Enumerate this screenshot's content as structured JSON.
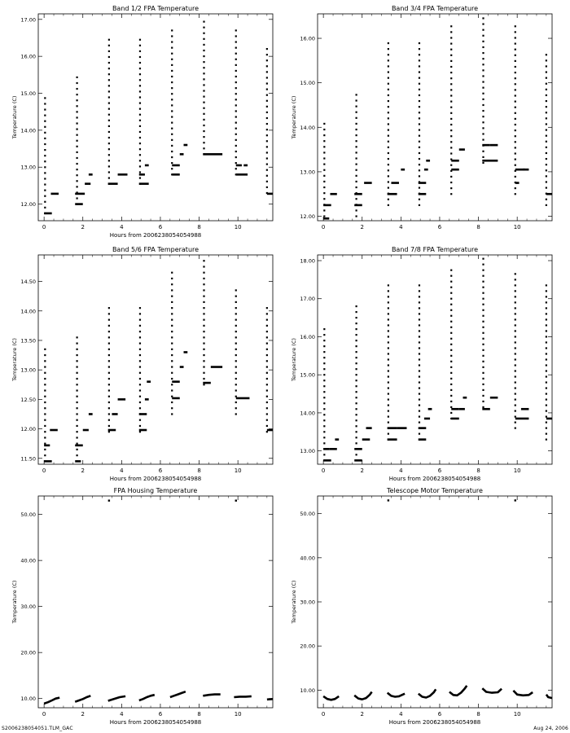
{
  "footer": {
    "file_label": "S2006238054051.TLM_GAC",
    "date_label": "Aug 24, 2006"
  },
  "chart_data": [
    {
      "id": "band12",
      "type": "scatter",
      "title": "Band 1/2 FPA Temperature",
      "xlabel": "Hours from 2006238054054988",
      "ylabel": "Temperature (C)",
      "xlim": [
        -0.3,
        11.8
      ],
      "ylim": [
        11.55,
        17.15
      ],
      "xticks": [
        0,
        2,
        4,
        6,
        8,
        10
      ],
      "yticks": [
        12,
        13,
        14,
        15,
        16,
        17
      ],
      "ytick_labels": [
        "12.00",
        "13.00",
        "14.00",
        "15.00",
        "16.00",
        "17.00"
      ],
      "ystep": 0.156,
      "vertical_runs": [
        [
          0.05,
          11.75,
          14.95
        ],
        [
          1.7,
          12.0,
          15.45
        ],
        [
          3.35,
          12.55,
          16.5
        ],
        [
          4.95,
          12.55,
          16.5
        ],
        [
          6.6,
          12.8,
          16.8
        ],
        [
          8.25,
          13.35,
          17.0
        ],
        [
          9.9,
          12.8,
          16.8
        ],
        [
          11.5,
          12.3,
          16.25
        ]
      ],
      "horizontal_segments": [
        [
          0.0,
          0.4,
          11.75
        ],
        [
          0.35,
          0.75,
          12.28
        ],
        [
          1.6,
          2.0,
          12.0
        ],
        [
          1.6,
          2.1,
          12.28
        ],
        [
          2.1,
          2.4,
          12.55
        ],
        [
          2.3,
          2.5,
          12.8
        ],
        [
          3.3,
          3.8,
          12.55
        ],
        [
          3.8,
          4.3,
          12.8
        ],
        [
          4.9,
          5.4,
          12.55
        ],
        [
          4.9,
          5.2,
          12.8
        ],
        [
          5.2,
          5.4,
          13.05
        ],
        [
          6.6,
          7.0,
          12.8
        ],
        [
          6.6,
          7.0,
          13.05
        ],
        [
          7.0,
          7.2,
          13.35
        ],
        [
          7.2,
          7.4,
          13.6
        ],
        [
          8.2,
          9.2,
          13.35
        ],
        [
          9.9,
          10.5,
          12.8
        ],
        [
          9.9,
          10.2,
          13.05
        ],
        [
          10.3,
          10.5,
          13.05
        ],
        [
          11.5,
          11.8,
          12.28
        ]
      ]
    },
    {
      "id": "band34",
      "type": "scatter",
      "title": "Band 3/4 FPA Temperature",
      "xlabel": "",
      "ylabel": "Temperature (C)",
      "xlim": [
        -0.3,
        11.8
      ],
      "ylim": [
        11.9,
        16.55
      ],
      "xticks": [
        0,
        2,
        4,
        6,
        8,
        10
      ],
      "yticks": [
        12,
        13,
        14,
        15,
        16
      ],
      "ytick_labels": [
        "12.00",
        "13.00",
        "14.00",
        "15.00",
        "16.00"
      ],
      "ystep": 0.13,
      "vertical_runs": [
        [
          0.05,
          12.0,
          14.2
        ],
        [
          1.7,
          12.0,
          14.8
        ],
        [
          3.35,
          12.25,
          15.95
        ],
        [
          4.95,
          12.25,
          15.95
        ],
        [
          6.6,
          12.5,
          16.3
        ],
        [
          8.25,
          13.2,
          16.45
        ],
        [
          9.9,
          12.5,
          16.3
        ],
        [
          11.5,
          12.25,
          15.75
        ]
      ],
      "horizontal_segments": [
        [
          0.0,
          0.3,
          11.95
        ],
        [
          0.0,
          0.4,
          12.25
        ],
        [
          0.35,
          0.7,
          12.5
        ],
        [
          1.6,
          2.0,
          12.25
        ],
        [
          1.6,
          2.0,
          12.5
        ],
        [
          2.1,
          2.5,
          12.75
        ],
        [
          3.3,
          3.8,
          12.5
        ],
        [
          3.5,
          3.9,
          12.75
        ],
        [
          4.0,
          4.2,
          13.05
        ],
        [
          4.9,
          5.3,
          12.5
        ],
        [
          4.9,
          5.3,
          12.75
        ],
        [
          5.2,
          5.4,
          13.05
        ],
        [
          5.3,
          5.5,
          13.25
        ],
        [
          6.6,
          7.0,
          13.05
        ],
        [
          6.6,
          7.0,
          13.25
        ],
        [
          7.0,
          7.3,
          13.5
        ],
        [
          8.2,
          9.0,
          13.25
        ],
        [
          8.2,
          8.6,
          13.6
        ],
        [
          8.6,
          9.0,
          13.6
        ],
        [
          9.9,
          10.1,
          12.75
        ],
        [
          9.9,
          10.4,
          13.05
        ],
        [
          10.3,
          10.6,
          13.05
        ],
        [
          11.5,
          11.8,
          12.5
        ]
      ]
    },
    {
      "id": "band56",
      "type": "scatter",
      "title": "Band 5/6 FPA Temperature",
      "xlabel": "Hours from 2006238054054988",
      "ylabel": "Temperature (C)",
      "xlim": [
        -0.3,
        11.8
      ],
      "ylim": [
        11.4,
        14.95
      ],
      "xticks": [
        0,
        2,
        4,
        6,
        8,
        10
      ],
      "yticks": [
        11.5,
        12,
        12.5,
        13,
        13.5,
        14,
        14.5
      ],
      "ytick_labels": [
        "11.50",
        "12.00",
        "12.50",
        "13.00",
        "13.50",
        "14.00",
        "14.50"
      ],
      "ystep": 0.1,
      "vertical_runs": [
        [
          0.05,
          11.45,
          13.4
        ],
        [
          1.7,
          11.45,
          13.6
        ],
        [
          3.35,
          11.95,
          14.1
        ],
        [
          4.95,
          11.95,
          14.1
        ],
        [
          6.6,
          12.25,
          14.65
        ],
        [
          8.25,
          12.75,
          14.85
        ],
        [
          9.9,
          12.25,
          14.4
        ],
        [
          11.5,
          11.95,
          14.1
        ]
      ],
      "horizontal_segments": [
        [
          0.0,
          0.4,
          11.45
        ],
        [
          0.0,
          0.3,
          11.72
        ],
        [
          0.3,
          0.7,
          11.98
        ],
        [
          1.6,
          1.9,
          11.45
        ],
        [
          1.6,
          2.0,
          11.72
        ],
        [
          2.0,
          2.3,
          11.98
        ],
        [
          2.3,
          2.5,
          12.25
        ],
        [
          3.3,
          3.7,
          11.98
        ],
        [
          3.5,
          3.8,
          12.25
        ],
        [
          3.8,
          4.2,
          12.5
        ],
        [
          4.9,
          5.3,
          11.98
        ],
        [
          4.9,
          5.3,
          12.25
        ],
        [
          5.2,
          5.4,
          12.5
        ],
        [
          5.3,
          5.5,
          12.8
        ],
        [
          6.6,
          7.0,
          12.52
        ],
        [
          6.6,
          7.0,
          12.8
        ],
        [
          7.0,
          7.2,
          13.05
        ],
        [
          7.2,
          7.4,
          13.3
        ],
        [
          8.2,
          8.6,
          12.78
        ],
        [
          8.6,
          9.2,
          13.05
        ],
        [
          9.9,
          10.6,
          12.52
        ],
        [
          11.5,
          11.8,
          11.98
        ]
      ]
    },
    {
      "id": "band78",
      "type": "scatter",
      "title": "Band 7/8 FPA Temperature",
      "xlabel": "Hours from 2006238054054988",
      "ylabel": "Temperature (C)",
      "xlim": [
        -0.3,
        11.8
      ],
      "ylim": [
        12.65,
        18.15
      ],
      "xticks": [
        0,
        2,
        4,
        6,
        8,
        10
      ],
      "yticks": [
        13,
        14,
        15,
        16,
        17,
        18
      ],
      "ytick_labels": [
        "13.00",
        "14.00",
        "15.00",
        "16.00",
        "17.00",
        "18.00"
      ],
      "ystep": 0.15,
      "vertical_runs": [
        [
          0.05,
          12.75,
          16.25
        ],
        [
          1.7,
          12.75,
          16.8
        ],
        [
          3.35,
          13.3,
          17.4
        ],
        [
          4.95,
          13.3,
          17.4
        ],
        [
          6.6,
          13.85,
          17.85
        ],
        [
          8.25,
          14.15,
          18.05
        ],
        [
          9.9,
          13.6,
          17.65
        ],
        [
          11.5,
          13.3,
          17.4
        ]
      ],
      "horizontal_segments": [
        [
          0.0,
          0.4,
          12.75
        ],
        [
          0.0,
          0.3,
          13.05
        ],
        [
          0.3,
          0.7,
          13.05
        ],
        [
          0.6,
          0.8,
          13.3
        ],
        [
          1.6,
          2.0,
          12.75
        ],
        [
          1.6,
          2.0,
          13.05
        ],
        [
          2.0,
          2.4,
          13.3
        ],
        [
          2.2,
          2.5,
          13.6
        ],
        [
          3.3,
          3.8,
          13.3
        ],
        [
          3.3,
          3.8,
          13.6
        ],
        [
          3.8,
          4.3,
          13.6
        ],
        [
          4.9,
          5.3,
          13.3
        ],
        [
          4.9,
          5.3,
          13.6
        ],
        [
          5.2,
          5.5,
          13.85
        ],
        [
          5.4,
          5.6,
          14.1
        ],
        [
          6.6,
          7.0,
          13.85
        ],
        [
          6.6,
          7.0,
          14.1
        ],
        [
          7.0,
          7.3,
          14.1
        ],
        [
          7.2,
          7.4,
          14.4
        ],
        [
          8.2,
          8.6,
          14.1
        ],
        [
          8.6,
          9.0,
          14.4
        ],
        [
          9.9,
          10.6,
          13.85
        ],
        [
          10.2,
          10.6,
          14.1
        ],
        [
          11.5,
          11.8,
          13.85
        ]
      ]
    },
    {
      "id": "housing",
      "type": "scatter",
      "title": "FPA Housing Temperature",
      "xlabel": "Hours from 2006238054054988",
      "ylabel": "Temperature (C)",
      "xlim": [
        -0.3,
        11.8
      ],
      "ylim": [
        8,
        54
      ],
      "xticks": [
        0,
        2,
        4,
        6,
        8,
        10
      ],
      "yticks": [
        10,
        20,
        30,
        40,
        50
      ],
      "ytick_labels": [
        "10.00",
        "20.00",
        "30.00",
        "40.00",
        "50.00"
      ],
      "isolated_points": [
        [
          3.35,
          53.0
        ],
        [
          9.9,
          53.0
        ]
      ],
      "curve_segments": [
        [
          [
            0.0,
            8.9
          ],
          [
            0.2,
            9.2
          ],
          [
            0.4,
            9.6
          ],
          [
            0.6,
            10.0
          ],
          [
            0.8,
            10.2
          ]
        ],
        [
          [
            1.6,
            9.3
          ],
          [
            1.8,
            9.6
          ],
          [
            2.0,
            9.9
          ],
          [
            2.2,
            10.3
          ],
          [
            2.4,
            10.6
          ]
        ],
        [
          [
            3.3,
            9.5
          ],
          [
            3.6,
            9.9
          ],
          [
            3.9,
            10.3
          ],
          [
            4.2,
            10.5
          ]
        ],
        [
          [
            4.9,
            9.6
          ],
          [
            5.1,
            9.9
          ],
          [
            5.3,
            10.3
          ],
          [
            5.5,
            10.6
          ],
          [
            5.7,
            10.8
          ]
        ],
        [
          [
            6.5,
            10.3
          ],
          [
            6.7,
            10.6
          ],
          [
            6.9,
            10.9
          ],
          [
            7.1,
            11.2
          ],
          [
            7.3,
            11.5
          ]
        ],
        [
          [
            8.2,
            10.6
          ],
          [
            8.5,
            10.8
          ],
          [
            8.8,
            10.9
          ],
          [
            9.1,
            10.9
          ]
        ],
        [
          [
            9.8,
            10.3
          ],
          [
            10.1,
            10.4
          ],
          [
            10.4,
            10.4
          ],
          [
            10.7,
            10.5
          ]
        ],
        [
          [
            11.5,
            9.8
          ],
          [
            11.8,
            9.9
          ]
        ]
      ]
    },
    {
      "id": "motor",
      "type": "scatter",
      "title": "Telescope Motor Temperature",
      "xlabel": "Hours from 2006238054054988",
      "ylabel": "Temperature (C)",
      "xlim": [
        -0.3,
        11.8
      ],
      "ylim": [
        6,
        54
      ],
      "xticks": [
        0,
        2,
        4,
        6,
        8,
        10
      ],
      "yticks": [
        10,
        20,
        30,
        40,
        50
      ],
      "ytick_labels": [
        "10.00",
        "20.00",
        "30.00",
        "40.00",
        "50.00"
      ],
      "isolated_points": [
        [
          3.35,
          53.0
        ],
        [
          9.9,
          53.0
        ]
      ],
      "curve_segments": [
        [
          [
            0.0,
            8.6
          ],
          [
            0.2,
            8.0
          ],
          [
            0.4,
            7.8
          ],
          [
            0.6,
            8.0
          ],
          [
            0.8,
            8.6
          ]
        ],
        [
          [
            1.6,
            8.8
          ],
          [
            1.8,
            8.1
          ],
          [
            2.0,
            7.9
          ],
          [
            2.2,
            8.2
          ],
          [
            2.4,
            9.0
          ],
          [
            2.5,
            9.6
          ]
        ],
        [
          [
            3.3,
            9.4
          ],
          [
            3.5,
            8.7
          ],
          [
            3.7,
            8.5
          ],
          [
            3.9,
            8.6
          ],
          [
            4.2,
            9.2
          ]
        ],
        [
          [
            4.9,
            9.2
          ],
          [
            5.1,
            8.5
          ],
          [
            5.3,
            8.3
          ],
          [
            5.5,
            8.7
          ],
          [
            5.7,
            9.5
          ],
          [
            5.8,
            10.2
          ]
        ],
        [
          [
            6.5,
            9.6
          ],
          [
            6.7,
            8.9
          ],
          [
            6.9,
            8.8
          ],
          [
            7.1,
            9.4
          ],
          [
            7.3,
            10.4
          ],
          [
            7.4,
            11.0
          ]
        ],
        [
          [
            8.2,
            10.4
          ],
          [
            8.4,
            9.6
          ],
          [
            8.7,
            9.4
          ],
          [
            9.0,
            9.5
          ],
          [
            9.2,
            10.3
          ]
        ],
        [
          [
            9.8,
            9.9
          ],
          [
            10.0,
            9.0
          ],
          [
            10.3,
            8.8
          ],
          [
            10.6,
            8.9
          ],
          [
            10.8,
            9.5
          ]
        ],
        [
          [
            11.5,
            9.0
          ],
          [
            11.6,
            8.4
          ],
          [
            11.8,
            8.2
          ]
        ]
      ]
    }
  ]
}
